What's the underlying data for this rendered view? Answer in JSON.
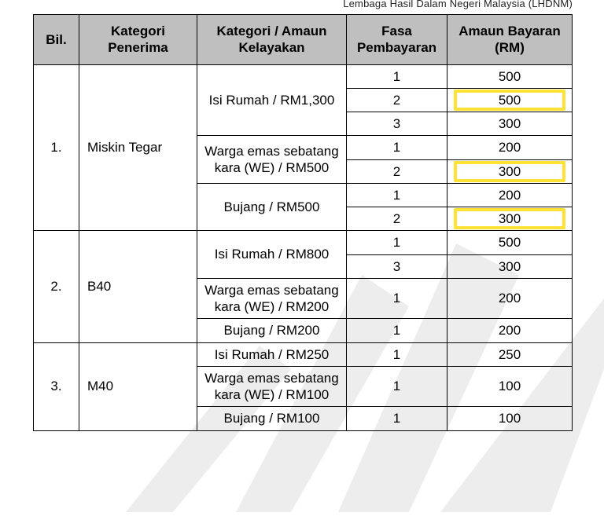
{
  "header_cut": "Lembaga Hasil Dalam Negeri Malaysia (LHDNM)",
  "columns": {
    "c1": "Bil.",
    "c2": "Kategori Penerima",
    "c3": "Kategori / Amaun Kelayakan",
    "c4": "Fasa Pembayaran",
    "c5": "Amaun Bayaran (RM)"
  },
  "groups": [
    {
      "bil": "1.",
      "kategori": "Miskin Tegar",
      "subs": [
        {
          "label": "Isi Rumah / RM1,300",
          "rows": [
            {
              "fasa": "1",
              "amaun": "500",
              "highlight": false
            },
            {
              "fasa": "2",
              "amaun": "500",
              "highlight": true
            },
            {
              "fasa": "3",
              "amaun": "300",
              "highlight": false
            }
          ]
        },
        {
          "label": "Warga emas sebatang kara (WE) / RM500",
          "rows": [
            {
              "fasa": "1",
              "amaun": "200",
              "highlight": false
            },
            {
              "fasa": "2",
              "amaun": "300",
              "highlight": true
            }
          ]
        },
        {
          "label": "Bujang / RM500",
          "rows": [
            {
              "fasa": "1",
              "amaun": "200",
              "highlight": false
            },
            {
              "fasa": "2",
              "amaun": "300",
              "highlight": true
            }
          ]
        }
      ]
    },
    {
      "bil": "2.",
      "kategori": "B40",
      "subs": [
        {
          "label": "Isi Rumah / RM800",
          "rows": [
            {
              "fasa": "1",
              "amaun": "500",
              "highlight": false
            },
            {
              "fasa": "3",
              "amaun": "300",
              "highlight": false
            }
          ]
        },
        {
          "label": "Warga emas sebatang kara (WE) / RM200",
          "rows": [
            {
              "fasa": "1",
              "amaun": "200",
              "highlight": false
            }
          ]
        },
        {
          "label": "Bujang / RM200",
          "rows": [
            {
              "fasa": "1",
              "amaun": "200",
              "highlight": false
            }
          ]
        }
      ]
    },
    {
      "bil": "3.",
      "kategori": "M40",
      "subs": [
        {
          "label": "Isi Rumah / RM250",
          "rows": [
            {
              "fasa": "1",
              "amaun": "250",
              "highlight": false
            }
          ]
        },
        {
          "label": "Warga emas sebatang kara (WE) / RM100",
          "rows": [
            {
              "fasa": "1",
              "amaun": "100",
              "highlight": false
            }
          ]
        },
        {
          "label": "Bujang / RM100",
          "rows": [
            {
              "fasa": "1",
              "amaun": "100",
              "highlight": false
            }
          ]
        }
      ]
    }
  ]
}
